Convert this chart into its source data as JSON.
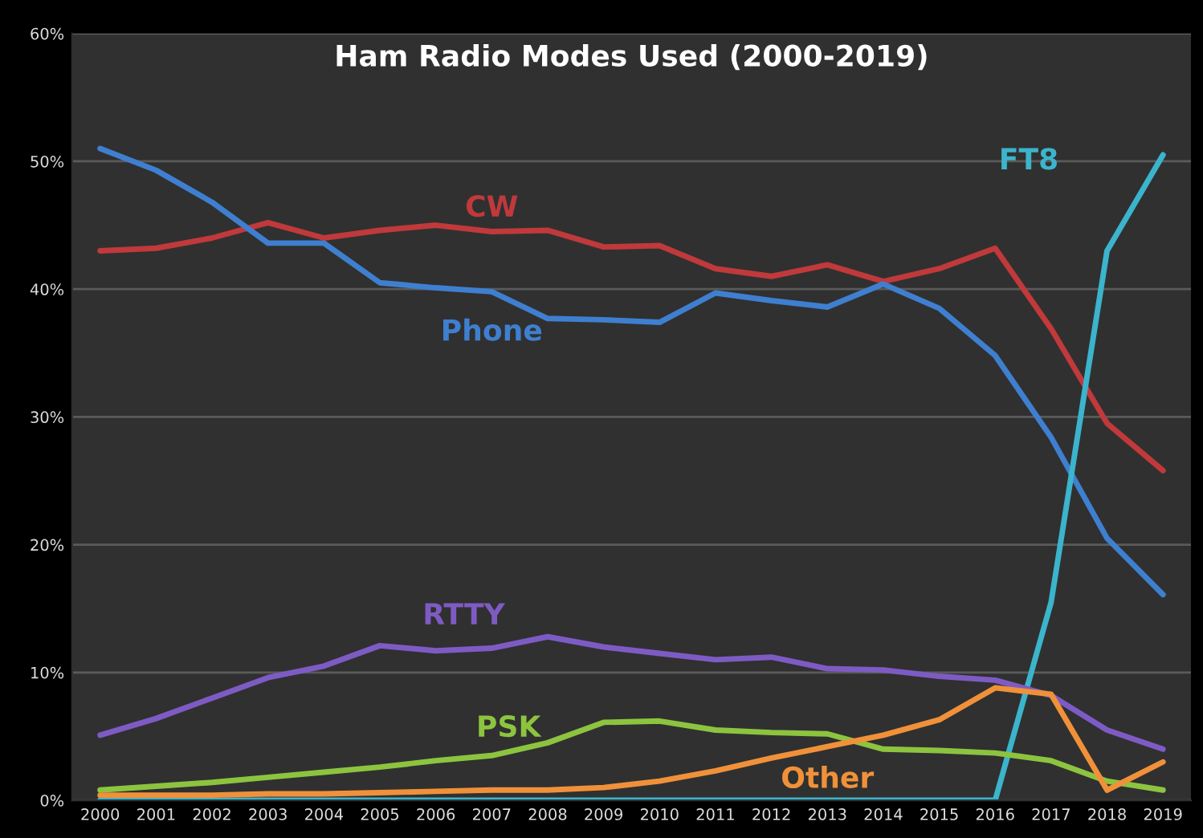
{
  "chart_data": {
    "type": "line",
    "title": "Ham Radio Modes Used (2000-2019)",
    "categories": [
      "2000",
      "2001",
      "2002",
      "2003",
      "2004",
      "2005",
      "2006",
      "2007",
      "2008",
      "2009",
      "2010",
      "2011",
      "2012",
      "2013",
      "2014",
      "2015",
      "2016",
      "2017",
      "2018",
      "2019"
    ],
    "series": [
      {
        "name": "CW",
        "color": "#c0393b",
        "values": [
          43,
          43.2,
          44,
          45.2,
          44,
          44.6,
          45,
          44.5,
          44.6,
          43.3,
          43.4,
          41.6,
          41,
          41.9,
          40.6,
          41.6,
          43.2,
          36.9,
          29.5,
          25.8
        ]
      },
      {
        "name": "Phone",
        "color": "#3f7fcf",
        "values": [
          51,
          49.3,
          46.8,
          43.6,
          43.6,
          40.5,
          40.1,
          39.8,
          37.7,
          37.6,
          37.4,
          39.7,
          39.1,
          38.6,
          40.4,
          38.5,
          34.8,
          28.4,
          20.5,
          16.1
        ]
      },
      {
        "name": "FT8",
        "color": "#3bb4cc",
        "values": [
          0,
          0,
          0,
          0,
          0,
          0,
          0,
          0,
          0,
          0,
          0,
          0,
          0,
          0,
          0,
          0,
          0,
          15.5,
          43,
          50.5
        ]
      },
      {
        "name": "RTTY",
        "color": "#7e5bc4",
        "values": [
          5.1,
          6.4,
          8,
          9.6,
          10.5,
          12.1,
          11.7,
          11.9,
          12.8,
          12,
          11.5,
          11,
          11.2,
          10.3,
          10.2,
          9.7,
          9.4,
          8.2,
          5.5,
          4
        ]
      },
      {
        "name": "PSK",
        "color": "#8dc43f",
        "values": [
          0.8,
          1.1,
          1.4,
          1.8,
          2.2,
          2.6,
          3.1,
          3.5,
          4.5,
          6.1,
          6.2,
          5.5,
          5.3,
          5.2,
          4,
          3.9,
          3.7,
          3.1,
          1.5,
          0.8
        ]
      },
      {
        "name": "Other",
        "color": "#f0913a",
        "values": [
          0.4,
          0.4,
          0.4,
          0.5,
          0.5,
          0.6,
          0.7,
          0.8,
          0.8,
          1,
          1.5,
          2.3,
          3.3,
          4.2,
          5.1,
          6.3,
          8.8,
          8.3,
          0.8,
          3.0
        ]
      }
    ],
    "ylim": [
      0,
      60
    ],
    "yticks": [
      {
        "value": 0,
        "label": "0%"
      },
      {
        "value": 10,
        "label": "10%"
      },
      {
        "value": 20,
        "label": "20%"
      },
      {
        "value": 30,
        "label": "30%"
      },
      {
        "value": 40,
        "label": "40%"
      },
      {
        "value": 50,
        "label": "50%"
      },
      {
        "value": 60,
        "label": "60%"
      }
    ],
    "grid": "y",
    "legend": false,
    "marker": "none",
    "line_style": "solid"
  }
}
